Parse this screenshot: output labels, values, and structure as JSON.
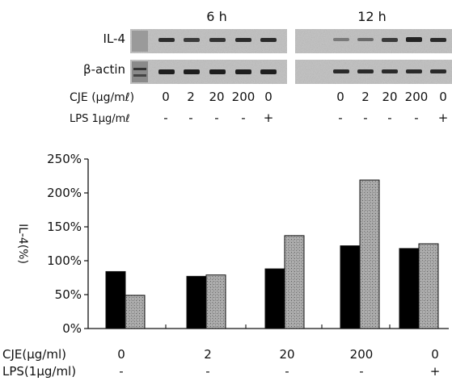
{
  "blot": {
    "panels": [
      {
        "label": "6 h",
        "conc_labels": [
          "0",
          "2",
          "20",
          "200",
          "0"
        ],
        "lps_marks": [
          "-",
          "-",
          "-",
          "-",
          "+"
        ]
      },
      {
        "label": "12 h",
        "conc_labels": [
          "0",
          "2",
          "20",
          "200",
          "0"
        ],
        "lps_marks": [
          "-",
          "-",
          "-",
          "-",
          "+"
        ]
      }
    ],
    "row_labels": [
      "IL-4",
      "β-actin"
    ],
    "cje_label": "CJE (μg/mℓ)",
    "lps_label": "LPS 1μg/mℓ",
    "band_color": "#2a2a2a",
    "background_color": "#c9c9c9"
  },
  "chart_data": {
    "type": "bar",
    "categories": [
      "0",
      "2",
      "20",
      "200",
      "0"
    ],
    "lps_marks": [
      "-",
      "-",
      "-",
      "-",
      "+"
    ],
    "series": [
      {
        "values": [
          84,
          77,
          88,
          122,
          118
        ],
        "color": "#000000",
        "pattern": "solid"
      },
      {
        "values": [
          49,
          79,
          137,
          219,
          125
        ],
        "color": "#a0a0a0",
        "pattern": "stippled-gray"
      }
    ],
    "ylabel": "IL-4(%)",
    "ylim": [
      0,
      250
    ],
    "yticks": [
      0,
      50,
      100,
      150,
      200,
      250
    ],
    "ytick_labels": [
      "0%",
      "50%",
      "100%",
      "150%",
      "200%",
      "250%"
    ],
    "xlabel_rows": [
      "CJE(μg/ml)",
      "LPS(1μg/ml)"
    ],
    "grid": false,
    "legend": "none"
  }
}
